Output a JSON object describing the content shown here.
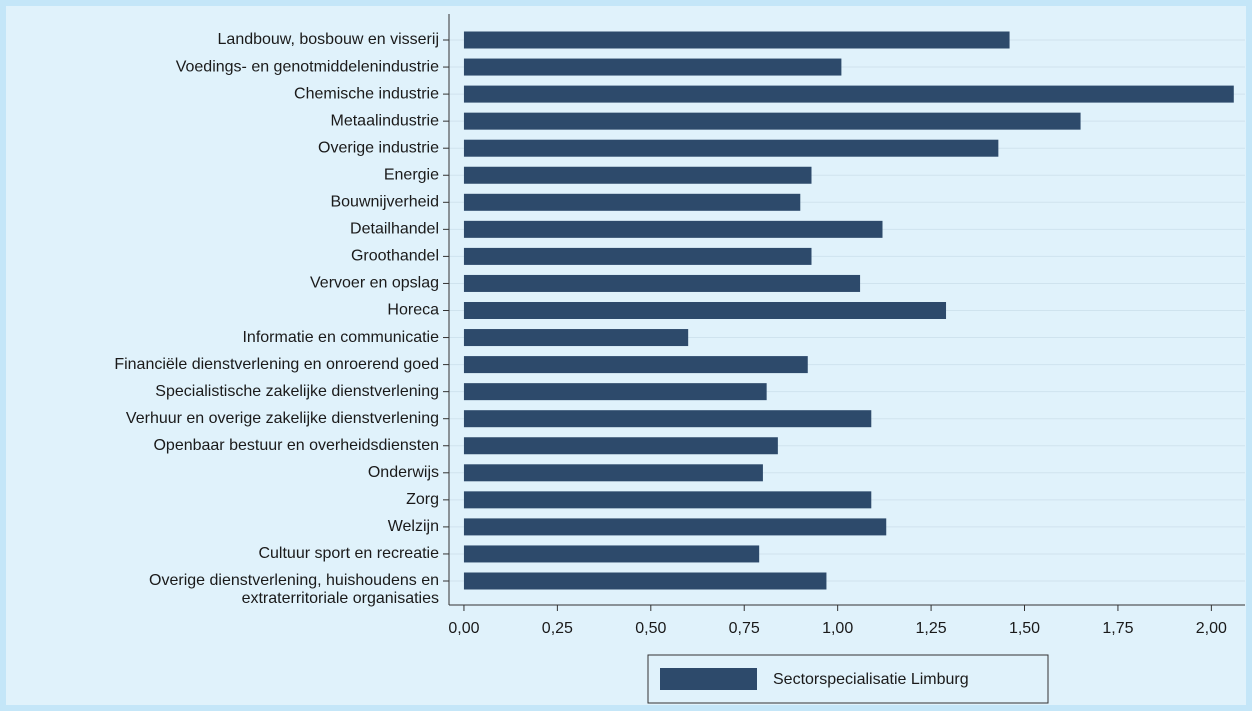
{
  "chart_data": {
    "type": "barh",
    "categories": [
      "Landbouw, bosbouw en visserij",
      "Voedings- en genotmiddelenindustrie",
      "Chemische industrie",
      "Metaalindustrie",
      "Overige industrie",
      "Energie",
      "Bouwnijverheid",
      "Detailhandel",
      "Groothandel",
      "Vervoer en opslag",
      "Horeca",
      "Informatie en communicatie",
      "Financiële dienstverlening en onroerend goed",
      "Specialistische zakelijke dienstverlening",
      "Verhuur en overige zakelijke dienstverlening",
      "Openbaar bestuur en overheidsdiensten",
      "Onderwijs",
      "Zorg",
      "Welzijn",
      "Cultuur sport en recreatie",
      "Overige dienstverlening, huishoudens en\nextraterritoriale organisaties"
    ],
    "series": [
      {
        "name": "Sectorspecialisatie Limburg",
        "color": "#2d4a6b",
        "values": [
          1.46,
          1.01,
          2.06,
          1.65,
          1.43,
          0.93,
          0.9,
          1.12,
          0.93,
          1.06,
          1.29,
          0.6,
          0.92,
          0.81,
          1.09,
          0.84,
          0.8,
          1.09,
          1.13,
          0.79,
          0.97
        ]
      }
    ],
    "xlim": [
      -0.04,
      2.09
    ],
    "xticks": [
      {
        "value": 0,
        "label": "0,00"
      },
      {
        "value": 0.25,
        "label": "0,25"
      },
      {
        "value": 0.5,
        "label": "0,50"
      },
      {
        "value": 0.75,
        "label": "0,75"
      },
      {
        "value": 1,
        "label": "1,00"
      },
      {
        "value": 1.25,
        "label": "1,25"
      },
      {
        "value": 1.5,
        "label": "1,50"
      },
      {
        "value": 1.75,
        "label": "1,75"
      },
      {
        "value": 2,
        "label": "2,00"
      }
    ],
    "grid": true,
    "legend": "bottom"
  }
}
